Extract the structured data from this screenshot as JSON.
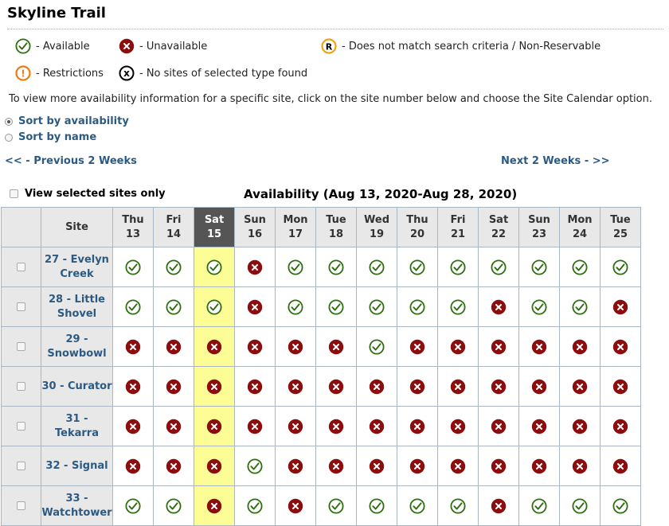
{
  "page": {
    "title": "Skyline Trail"
  },
  "legend": {
    "available": "- Available",
    "unavailable": "- Unavailable",
    "not_match": "- Does not match search criteria / Non-Reservable",
    "restrictions": "- Restrictions",
    "no_sites": "- No sites of selected type found",
    "not_match_letter": "R",
    "restrictions_glyph": "!",
    "no_sites_glyph": "x",
    "colors": {
      "available": "#2e6e10",
      "unavailable": "#8b0d0d",
      "not_match": "#f2a20c",
      "restrictions": "#f07a12",
      "no_sites": "#000000"
    }
  },
  "info_text": "To view more availability information for a specific site, click on the site number below and choose the Site Calendar option.",
  "sort": {
    "by_availability": "Sort by availability",
    "by_name": "Sort by name",
    "selected": "availability"
  },
  "nav": {
    "previous": "<< - Previous 2 Weeks",
    "next": "Next 2 Weeks - >>"
  },
  "view_selected_label": "View selected sites only",
  "availability_title": "Availability (Aug 13, 2020-Aug 28, 2020)",
  "table": {
    "site_header": "Site",
    "today_index": 2,
    "days": [
      {
        "dow": "Thu",
        "date": "13"
      },
      {
        "dow": "Fri",
        "date": "14"
      },
      {
        "dow": "Sat",
        "date": "15"
      },
      {
        "dow": "Sun",
        "date": "16"
      },
      {
        "dow": "Mon",
        "date": "17"
      },
      {
        "dow": "Tue",
        "date": "18"
      },
      {
        "dow": "Wed",
        "date": "19"
      },
      {
        "dow": "Thu",
        "date": "20"
      },
      {
        "dow": "Fri",
        "date": "21"
      },
      {
        "dow": "Sat",
        "date": "22"
      },
      {
        "dow": "Sun",
        "date": "23"
      },
      {
        "dow": "Mon",
        "date": "24"
      },
      {
        "dow": "Tue",
        "date": "25"
      }
    ],
    "sites": [
      {
        "line1": "27 - Evelyn",
        "line2": "Creek",
        "status": [
          "A",
          "A",
          "A",
          "U",
          "A",
          "A",
          "A",
          "A",
          "A",
          "A",
          "A",
          "A",
          "A"
        ]
      },
      {
        "line1": "28 - Little",
        "line2": "Shovel",
        "status": [
          "A",
          "A",
          "A",
          "U",
          "A",
          "A",
          "A",
          "A",
          "A",
          "U",
          "A",
          "A",
          "U"
        ]
      },
      {
        "line1": "29 -",
        "line2": "Snowbowl",
        "status": [
          "U",
          "U",
          "U",
          "U",
          "U",
          "U",
          "A",
          "U",
          "U",
          "U",
          "U",
          "U",
          "U"
        ]
      },
      {
        "line1": "30 - Curator",
        "line2": "",
        "status": [
          "U",
          "U",
          "U",
          "U",
          "U",
          "U",
          "U",
          "U",
          "U",
          "U",
          "U",
          "U",
          "U"
        ]
      },
      {
        "line1": "31 -",
        "line2": "Tekarra",
        "status": [
          "U",
          "U",
          "U",
          "U",
          "U",
          "U",
          "U",
          "U",
          "U",
          "U",
          "U",
          "U",
          "U"
        ]
      },
      {
        "line1": "32 - Signal",
        "line2": "",
        "status": [
          "U",
          "U",
          "U",
          "A",
          "U",
          "U",
          "U",
          "U",
          "U",
          "U",
          "U",
          "U",
          "U"
        ]
      },
      {
        "line1": "33 -",
        "line2": "Watchtower",
        "status": [
          "A",
          "A",
          "U",
          "A",
          "U",
          "A",
          "A",
          "A",
          "A",
          "U",
          "A",
          "A",
          "A"
        ]
      }
    ]
  }
}
